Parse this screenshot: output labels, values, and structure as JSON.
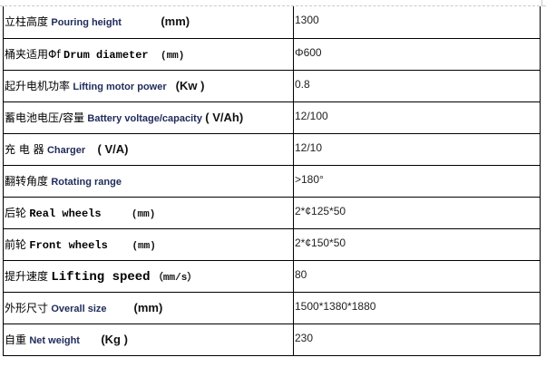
{
  "rows": [
    {
      "cn": "立柱高度",
      "en": "Pouring height",
      "unit": "(mm)",
      "value": "1300",
      "style": "sans"
    },
    {
      "cn": "桶夹适用Φf",
      "en": "Drum diameter",
      "unit": "(mm)",
      "value": "Φ600",
      "style": "serif"
    },
    {
      "cn": "起升电机功率",
      "en": "Lifting motor power",
      "unit": "(Kw )",
      "value": "0.8",
      "style": "sans"
    },
    {
      "cn": "蓄电池电压/容量",
      "en": "Battery voltage/capacity",
      "unit": "( V/Ah)",
      "value": "12/100",
      "style": "sans"
    },
    {
      "cn": "充 电 器",
      "en": "Charger",
      "unit": "( V/A)",
      "value": "12/10",
      "style": "sans"
    },
    {
      "cn": "翻转角度",
      "en": "Rotating range",
      "unit": "",
      "value": ">180°",
      "style": "sans"
    },
    {
      "cn": "后轮",
      "en": "Real wheels",
      "unit": "(mm)",
      "value": "2*¢125*50",
      "style": "serif"
    },
    {
      "cn": "前轮",
      "en": "Front wheels",
      "unit": "(mm)",
      "value": "2*¢150*50",
      "style": "serif"
    },
    {
      "cn": "提升速度",
      "en": "Lifting speed",
      "unit": "（mm/s）",
      "value": "80",
      "style": "big"
    },
    {
      "cn": "外形尺寸",
      "en": "Overall size",
      "unit": "(mm)",
      "value": "1500*1380*1880",
      "style": "sans"
    },
    {
      "cn": "自重",
      "en": "Net weight",
      "unit": "(Kg )",
      "value": "230",
      "style": "sans"
    }
  ]
}
